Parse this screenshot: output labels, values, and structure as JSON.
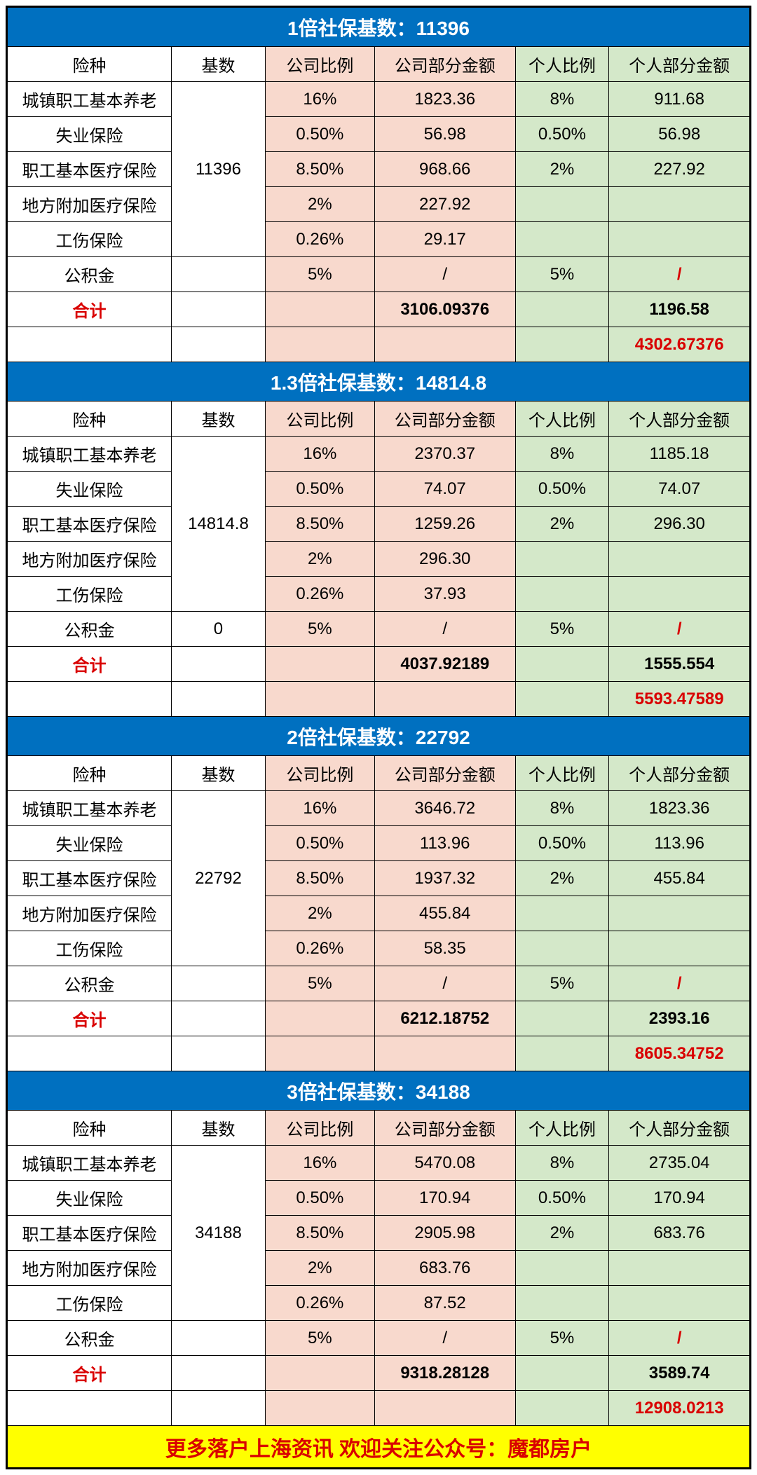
{
  "colors": {
    "header_bg": "#0070c0",
    "header_fg": "#ffffff",
    "company_bg": "#f8d9cd",
    "personal_bg": "#d4e8c9",
    "red": "#d90000",
    "footer_bg": "#ffff00",
    "border": "#000000"
  },
  "column_headers": {
    "type": "险种",
    "base": "基数",
    "company_rate": "公司比例",
    "company_amount": "公司部分金额",
    "personal_rate": "个人比例",
    "personal_amount": "个人部分金额"
  },
  "row_labels": {
    "pension": "城镇职工基本养老",
    "unemployment": "失业保险",
    "medical": "职工基本医疗保险",
    "local_medical": "地方附加医疗保险",
    "injury": "工伤保险",
    "fund": "公积金",
    "total": "合计"
  },
  "sections": [
    {
      "title": "1倍社保基数：11396",
      "base": "11396",
      "fund_base": "",
      "rows": {
        "pension": {
          "cr": "16%",
          "ca": "1823.36",
          "pr": "8%",
          "pa": "911.68"
        },
        "unemployment": {
          "cr": "0.50%",
          "ca": "56.98",
          "pr": "0.50%",
          "pa": "56.98"
        },
        "medical": {
          "cr": "8.50%",
          "ca": "968.66",
          "pr": "2%",
          "pa": "227.92"
        },
        "local_medical": {
          "cr": "2%",
          "ca": "227.92",
          "pr": "",
          "pa": ""
        },
        "injury": {
          "cr": "0.26%",
          "ca": "29.17",
          "pr": "",
          "pa": ""
        },
        "fund": {
          "cr": "5%",
          "ca": "/",
          "pr": "5%",
          "pa": "/"
        }
      },
      "total_company": "3106.09376",
      "total_personal": "1196.58",
      "grand_total": "4302.67376"
    },
    {
      "title": "1.3倍社保基数：14814.8",
      "base": "14814.8",
      "fund_base": "0",
      "rows": {
        "pension": {
          "cr": "16%",
          "ca": "2370.37",
          "pr": "8%",
          "pa": "1185.18"
        },
        "unemployment": {
          "cr": "0.50%",
          "ca": "74.07",
          "pr": "0.50%",
          "pa": "74.07"
        },
        "medical": {
          "cr": "8.50%",
          "ca": "1259.26",
          "pr": "2%",
          "pa": "296.30"
        },
        "local_medical": {
          "cr": "2%",
          "ca": "296.30",
          "pr": "",
          "pa": ""
        },
        "injury": {
          "cr": "0.26%",
          "ca": "37.93",
          "pr": "",
          "pa": ""
        },
        "fund": {
          "cr": "5%",
          "ca": "/",
          "pr": "5%",
          "pa": "/"
        }
      },
      "total_company": "4037.92189",
      "total_personal": "1555.554",
      "grand_total": "5593.47589"
    },
    {
      "title": "2倍社保基数：22792",
      "base": "22792",
      "fund_base": "",
      "rows": {
        "pension": {
          "cr": "16%",
          "ca": "3646.72",
          "pr": "8%",
          "pa": "1823.36"
        },
        "unemployment": {
          "cr": "0.50%",
          "ca": "113.96",
          "pr": "0.50%",
          "pa": "113.96"
        },
        "medical": {
          "cr": "8.50%",
          "ca": "1937.32",
          "pr": "2%",
          "pa": "455.84"
        },
        "local_medical": {
          "cr": "2%",
          "ca": "455.84",
          "pr": "",
          "pa": ""
        },
        "injury": {
          "cr": "0.26%",
          "ca": "58.35",
          "pr": "",
          "pa": ""
        },
        "fund": {
          "cr": "5%",
          "ca": "/",
          "pr": "5%",
          "pa": "/"
        }
      },
      "total_company": "6212.18752",
      "total_personal": "2393.16",
      "grand_total": "8605.34752"
    },
    {
      "title": "3倍社保基数：34188",
      "base": "34188",
      "fund_base": "",
      "rows": {
        "pension": {
          "cr": "16%",
          "ca": "5470.08",
          "pr": "8%",
          "pa": "2735.04"
        },
        "unemployment": {
          "cr": "0.50%",
          "ca": "170.94",
          "pr": "0.50%",
          "pa": "170.94"
        },
        "medical": {
          "cr": "8.50%",
          "ca": "2905.98",
          "pr": "2%",
          "pa": "683.76"
        },
        "local_medical": {
          "cr": "2%",
          "ca": "683.76",
          "pr": "",
          "pa": ""
        },
        "injury": {
          "cr": "0.26%",
          "ca": "87.52",
          "pr": "",
          "pa": ""
        },
        "fund": {
          "cr": "5%",
          "ca": "/",
          "pr": "5%",
          "pa": "/"
        }
      },
      "total_company": "9318.28128",
      "total_personal": "3589.74",
      "grand_total": "12908.0213"
    }
  ],
  "footer": "更多落户上海资讯 欢迎关注公众号：魔都房户"
}
